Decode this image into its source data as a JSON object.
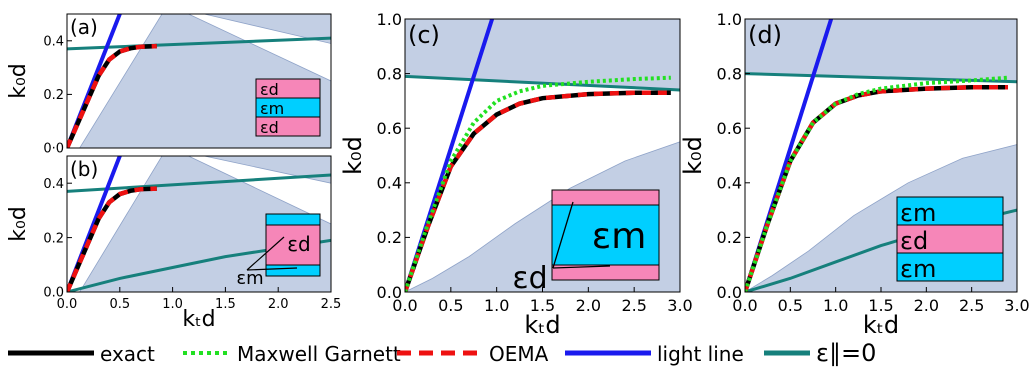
{
  "legend": {
    "items": [
      {
        "label": "exact",
        "color": "#000000",
        "style": "solid"
      },
      {
        "label": "Maxwell Garnett",
        "color": "#22e022",
        "style": "dotted"
      },
      {
        "label": "OEMA",
        "color": "#ee1111",
        "style": "dashed"
      },
      {
        "label": "light line",
        "color": "#1a1aee",
        "style": "solid"
      },
      {
        "label": "ε∥=0",
        "color": "#16807c",
        "style": "solid"
      }
    ]
  },
  "colors": {
    "region": "#c3cfe4",
    "pink": "#f686b8",
    "cyan": "#00cfff",
    "teal": "#16807c",
    "blue": "#1a1aee",
    "red": "#ee1111",
    "green": "#22e022",
    "black": "#000000"
  },
  "chart_data": [
    {
      "type": "line",
      "panel_label": "(a)",
      "xlim": [
        0,
        2.5
      ],
      "ylim": [
        0,
        0.5
      ],
      "xticks": [],
      "xtick_labels": [],
      "yticks": [
        0,
        0.2,
        0.4
      ],
      "ytick_labels": [
        "0·0",
        "0.2",
        "0.4"
      ],
      "xlabel": "",
      "ylabel": "k₀d",
      "inset_layers": [
        "εd",
        "εm",
        "εd"
      ],
      "series": [
        {
          "role": "exact",
          "x": [
            0,
            0.1,
            0.2,
            0.3,
            0.4,
            0.5,
            0.6,
            0.7,
            0.85
          ],
          "y": [
            0,
            0.09,
            0.18,
            0.27,
            0.33,
            0.36,
            0.372,
            0.378,
            0.38
          ]
        },
        {
          "role": "light_line",
          "x": [
            0,
            0.55
          ],
          "y": [
            0,
            0.55
          ]
        },
        {
          "role": "eps_par_zero",
          "x": [
            0,
            2.5
          ],
          "y": [
            0.37,
            0.41
          ]
        }
      ]
    },
    {
      "type": "line",
      "panel_label": "(b)",
      "xlim": [
        0,
        2.5
      ],
      "ylim": [
        0,
        0.5
      ],
      "xticks": [
        0,
        0.5,
        1.0,
        1.5,
        2.0,
        2.5
      ],
      "xtick_labels": [
        "0.0",
        "0.5",
        "1.0",
        "1.5",
        "2.0",
        "2.5"
      ],
      "yticks": [
        0,
        0.2,
        0.4
      ],
      "ytick_labels": [
        "0.0",
        "0.2",
        "0.4"
      ],
      "xlabel": "kₜd",
      "ylabel": "k₀d",
      "inset_layers": [
        "εm",
        "εd",
        "εm"
      ],
      "inset_callout": "εm",
      "series": [
        {
          "role": "exact",
          "x": [
            0,
            0.1,
            0.2,
            0.3,
            0.4,
            0.5,
            0.6,
            0.7,
            0.85
          ],
          "y": [
            0,
            0.09,
            0.18,
            0.27,
            0.33,
            0.36,
            0.372,
            0.378,
            0.38
          ]
        },
        {
          "role": "light_line",
          "x": [
            0,
            0.55
          ],
          "y": [
            0,
            0.55
          ]
        },
        {
          "role": "eps_par_zero_upper",
          "x": [
            0,
            2.5
          ],
          "y": [
            0.37,
            0.43
          ]
        },
        {
          "role": "eps_par_zero_lower",
          "x": [
            0,
            0.5,
            1.0,
            1.5,
            2.0,
            2.5
          ],
          "y": [
            0,
            0.05,
            0.09,
            0.13,
            0.16,
            0.19
          ]
        }
      ]
    },
    {
      "type": "line",
      "panel_label": "(c)",
      "xlim": [
        0,
        3.0
      ],
      "ylim": [
        0,
        1.0
      ],
      "xticks": [
        0,
        0.5,
        1.0,
        1.5,
        2.0,
        2.5,
        3.0
      ],
      "xtick_labels": [
        "0.0",
        "0.5",
        "1.0",
        "1.5",
        "2.0",
        "2.5",
        "3.0"
      ],
      "yticks": [
        0,
        0.2,
        0.4,
        0.6,
        0.8,
        1.0
      ],
      "ytick_labels": [
        "0.0",
        "0.2",
        "0.4",
        "0.6",
        "0.8",
        "1.0"
      ],
      "xlabel": "kₜd",
      "ylabel": "k₀d",
      "inset_layers": [
        "",
        "εm",
        ""
      ],
      "inset_callout": "εd",
      "series": [
        {
          "role": "exact",
          "x": [
            0,
            0.25,
            0.5,
            0.75,
            1.0,
            1.25,
            1.5,
            2.0,
            2.5,
            2.9
          ],
          "y": [
            0,
            0.24,
            0.46,
            0.58,
            0.65,
            0.69,
            0.71,
            0.725,
            0.73,
            0.73
          ]
        },
        {
          "role": "maxwell_garnett",
          "x": [
            0,
            0.25,
            0.5,
            0.75,
            1.0,
            1.25,
            1.5,
            2.0,
            2.5,
            2.9
          ],
          "y": [
            0,
            0.25,
            0.48,
            0.62,
            0.7,
            0.735,
            0.755,
            0.77,
            0.78,
            0.785
          ]
        },
        {
          "role": "light_line",
          "x": [
            0,
            0.95
          ],
          "y": [
            0,
            1.0
          ]
        },
        {
          "role": "eps_par_zero",
          "x": [
            0,
            3.0
          ],
          "y": [
            0.79,
            0.74
          ]
        }
      ]
    },
    {
      "type": "line",
      "panel_label": "(d)",
      "xlim": [
        0,
        3.0
      ],
      "ylim": [
        0,
        1.0
      ],
      "xticks": [
        0,
        0.5,
        1.0,
        1.5,
        2.0,
        2.5,
        3.0
      ],
      "xtick_labels": [
        "0.0",
        "0.5",
        "1.0",
        "1.5",
        "2.0",
        "2.5",
        "3.0"
      ],
      "yticks": [
        0,
        0.2,
        0.4,
        0.6,
        0.8,
        1.0
      ],
      "ytick_labels": [
        "0.0",
        "0.2",
        "0.4",
        "0.6",
        "0.8",
        "1.0"
      ],
      "xlabel": "kₜd",
      "ylabel": "k₀d",
      "inset_layers": [
        "εm",
        "εd",
        "εm"
      ],
      "series": [
        {
          "role": "exact",
          "x": [
            0,
            0.25,
            0.5,
            0.75,
            1.0,
            1.25,
            1.5,
            2.0,
            2.5,
            2.9
          ],
          "y": [
            0,
            0.25,
            0.48,
            0.62,
            0.69,
            0.72,
            0.735,
            0.745,
            0.75,
            0.75
          ]
        },
        {
          "role": "maxwell_garnett",
          "x": [
            0,
            0.25,
            0.5,
            0.75,
            1.0,
            1.25,
            1.5,
            2.0,
            2.5,
            2.9
          ],
          "y": [
            0,
            0.25,
            0.48,
            0.62,
            0.69,
            0.725,
            0.745,
            0.765,
            0.775,
            0.785
          ]
        },
        {
          "role": "light_line",
          "x": [
            0,
            0.95
          ],
          "y": [
            0,
            1.0
          ]
        },
        {
          "role": "eps_par_zero_upper",
          "x": [
            0,
            3.0
          ],
          "y": [
            0.8,
            0.77
          ]
        },
        {
          "role": "eps_par_zero_lower",
          "x": [
            0,
            0.5,
            1.0,
            1.5,
            2.0,
            2.5,
            3.0
          ],
          "y": [
            0,
            0.05,
            0.11,
            0.17,
            0.22,
            0.26,
            0.3
          ]
        }
      ]
    }
  ]
}
